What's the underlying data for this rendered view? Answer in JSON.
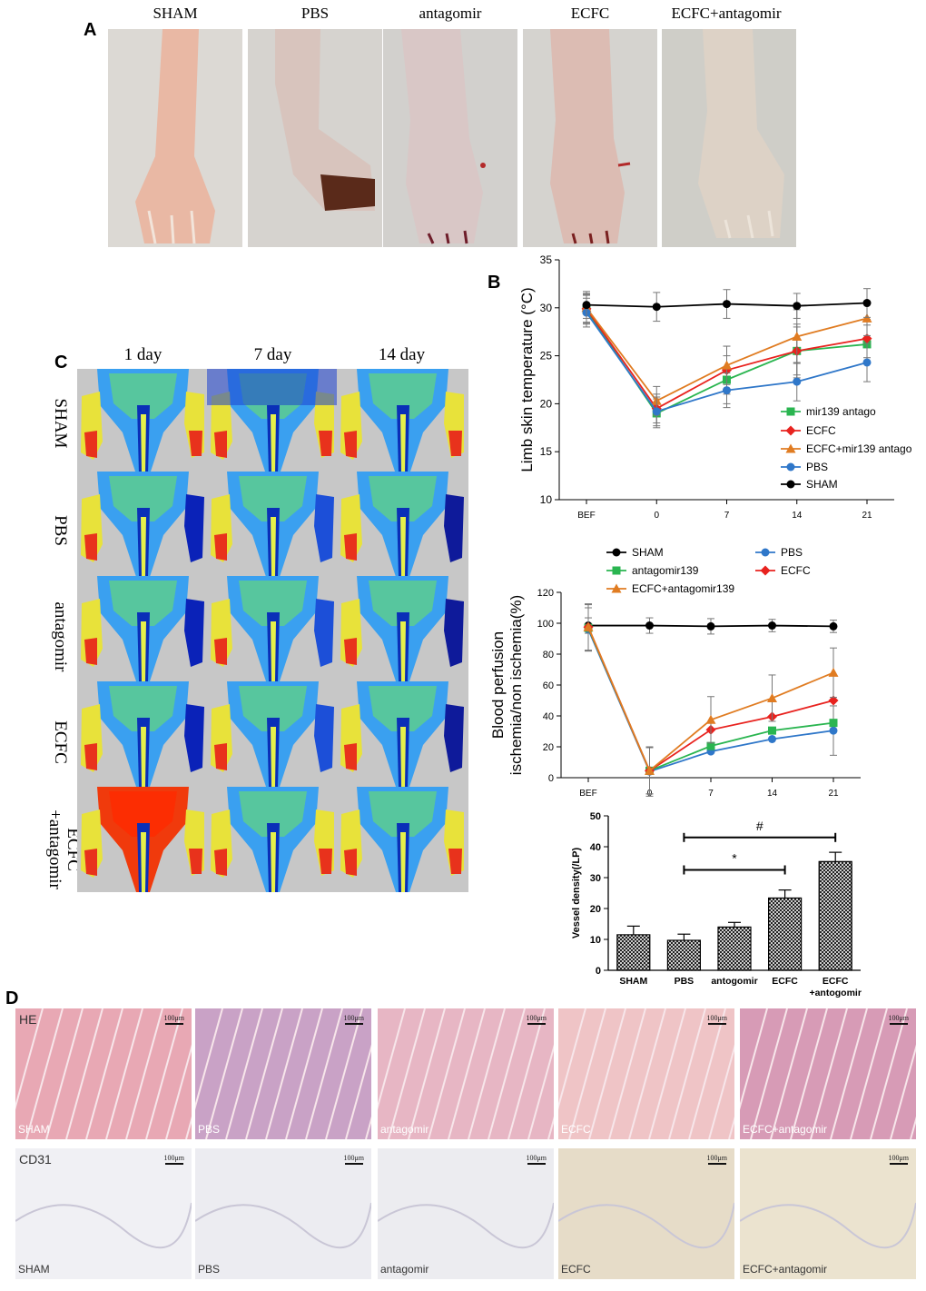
{
  "panels": {
    "A": "A",
    "B": "B",
    "C": "C",
    "D": "D"
  },
  "panel_a": {
    "labels": [
      "SHAM",
      "PBS",
      "antagomir",
      "ECFC",
      "ECFC+antagomir"
    ]
  },
  "panel_c": {
    "columns": [
      "1 day",
      "7 day",
      "14 day"
    ],
    "rows": [
      "SHAM",
      "PBS",
      "antagomir",
      "ECFC",
      "ECFC\n+antagomir"
    ]
  },
  "panel_d": {
    "stains": [
      "HE",
      "CD31"
    ],
    "labels": [
      "SHAM",
      "PBS",
      "antagomir",
      "ECFC",
      "ECFC+antagomir"
    ],
    "scale": "100μm"
  },
  "colors": {
    "sham": "#000000",
    "antago": "#2ab550",
    "ecfc": "#e8231f",
    "combo": "#e07c22",
    "pbs": "#2f77c9"
  },
  "chart_data": [
    {
      "type": "line",
      "title": "",
      "xlabel": "",
      "ylabel": "Limb skin temperature (°C)",
      "categories": [
        "BEF",
        "0",
        "7",
        "14",
        "21"
      ],
      "ylim": [
        10,
        35
      ],
      "yticks": [
        10,
        15,
        20,
        25,
        30,
        35
      ],
      "series": [
        {
          "name": "mir139 antago",
          "color": "#2ab550",
          "marker": "square",
          "values": [
            29.8,
            19.0,
            22.5,
            25.5,
            26.2
          ],
          "err": [
            1.5,
            1.5,
            2.5,
            2.5,
            2.0
          ]
        },
        {
          "name": "ECFC",
          "color": "#e8231f",
          "marker": "diamond",
          "values": [
            29.9,
            19.5,
            23.5,
            25.5,
            26.8
          ],
          "err": [
            1.5,
            1.5,
            2.5,
            2.8,
            2.0
          ]
        },
        {
          "name": "ECFC+mir139 antago",
          "color": "#e07c22",
          "marker": "triangle",
          "values": [
            30.0,
            20.3,
            24.0,
            27.0,
            28.9
          ],
          "err": [
            1.5,
            1.5,
            2.0,
            2.8,
            1.8
          ]
        },
        {
          "name": "PBS",
          "color": "#2f77c9",
          "marker": "circle",
          "values": [
            29.5,
            19.2,
            21.4,
            22.3,
            24.3
          ],
          "err": [
            1.5,
            1.5,
            1.8,
            2.0,
            2.0
          ]
        },
        {
          "name": "SHAM",
          "color": "#000000",
          "marker": "circle",
          "values": [
            30.3,
            30.1,
            30.4,
            30.2,
            30.5
          ],
          "err": [
            1.4,
            1.5,
            1.5,
            1.3,
            1.5
          ]
        }
      ]
    },
    {
      "type": "line",
      "title": "",
      "xlabel": "",
      "ylabel": "Blood perfusion ischemia/non ischemia(%)",
      "ylabel_lines": [
        "Blood perfusion",
        "ischemia/non ischemia(%)"
      ],
      "categories": [
        "BEF",
        "0",
        "7",
        "14",
        "21"
      ],
      "ylim": [
        0,
        120
      ],
      "yticks": [
        0,
        20,
        40,
        60,
        80,
        100,
        120
      ],
      "series": [
        {
          "name": "SHAM",
          "color": "#000000",
          "marker": "circle",
          "values": [
            98.5,
            98.5,
            98,
            98.5,
            98
          ],
          "err": [
            5,
            5,
            5,
            4,
            4
          ]
        },
        {
          "name": "PBS",
          "color": "#2f77c9",
          "marker": "circle",
          "values": [
            96,
            4,
            17,
            25,
            30.5
          ],
          "err": [
            14,
            16,
            0,
            0,
            16
          ]
        },
        {
          "name": "antagomir139",
          "color": "#2ab550",
          "marker": "square",
          "values": [
            97,
            4.5,
            20.5,
            30.5,
            35.5
          ],
          "err": [
            15,
            15,
            0,
            0,
            0
          ]
        },
        {
          "name": "ECFC",
          "color": "#e8231f",
          "marker": "diamond",
          "values": [
            97.5,
            4.5,
            31,
            39.5,
            50
          ],
          "err": [
            15,
            15,
            0,
            0,
            0
          ]
        },
        {
          "name": "ECFC+antagomir139",
          "color": "#e07c22",
          "marker": "triangle",
          "values": [
            97.5,
            4.5,
            37.5,
            51.5,
            68
          ],
          "err": [
            15,
            15,
            15,
            15,
            16
          ]
        }
      ]
    },
    {
      "type": "bar",
      "title": "",
      "xlabel": "",
      "ylabel": "Vessel density(/LP)",
      "categories": [
        "SHAM",
        "PBS",
        "antogomir",
        "ECFC",
        "ECFC\n+antogomir"
      ],
      "values": [
        11.5,
        9.7,
        14.0,
        23.4,
        35.2
      ],
      "err": [
        2.8,
        2.0,
        1.5,
        2.6,
        3.0
      ],
      "ylim": [
        0,
        50
      ],
      "yticks": [
        0,
        10,
        20,
        30,
        40,
        50
      ],
      "annotations": [
        {
          "label": "*",
          "from": "PBS",
          "to": "ECFC"
        },
        {
          "label": "#",
          "from": "PBS",
          "to": "ECFC\n+antogomir"
        }
      ]
    }
  ]
}
